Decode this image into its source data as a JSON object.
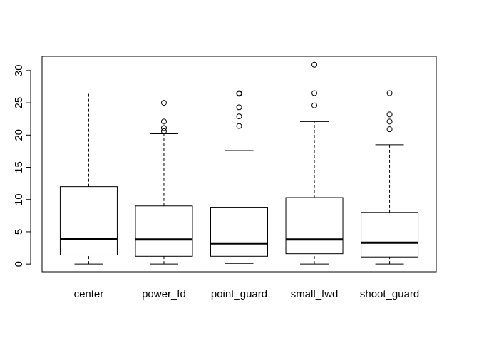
{
  "chart_data": {
    "type": "boxplot",
    "title": "",
    "xlabel": "",
    "ylabel": "",
    "ylim": [
      -1.2,
      32.2
    ],
    "yticks": [
      0,
      5,
      10,
      15,
      20,
      25,
      30
    ],
    "grid": false,
    "categories": [
      "center",
      "power_fd",
      "point_guard",
      "small_fwd",
      "shoot_guard"
    ],
    "boxes": [
      {
        "category": "center",
        "min": 0,
        "q1": 1.4,
        "median": 3.9,
        "q3": 12.0,
        "max": 26.5,
        "outliers": []
      },
      {
        "category": "power_fd",
        "min": 0,
        "q1": 1.2,
        "median": 3.8,
        "q3": 9.0,
        "max": 20.2,
        "outliers": [
          20.6,
          21.1,
          22.1,
          25.0
        ]
      },
      {
        "category": "point_guard",
        "min": 0.1,
        "q1": 1.2,
        "median": 3.2,
        "q3": 8.8,
        "max": 17.6,
        "outliers": [
          21.4,
          22.9,
          24.3,
          26.4,
          26.5
        ]
      },
      {
        "category": "small_fwd",
        "min": 0,
        "q1": 1.6,
        "median": 3.8,
        "q3": 10.3,
        "max": 22.1,
        "outliers": [
          24.6,
          26.5,
          30.9
        ]
      },
      {
        "category": "shoot_guard",
        "min": 0,
        "q1": 1.1,
        "median": 3.3,
        "q3": 8.0,
        "max": 18.5,
        "outliers": [
          20.9,
          22.1,
          23.2,
          26.5
        ]
      }
    ]
  }
}
